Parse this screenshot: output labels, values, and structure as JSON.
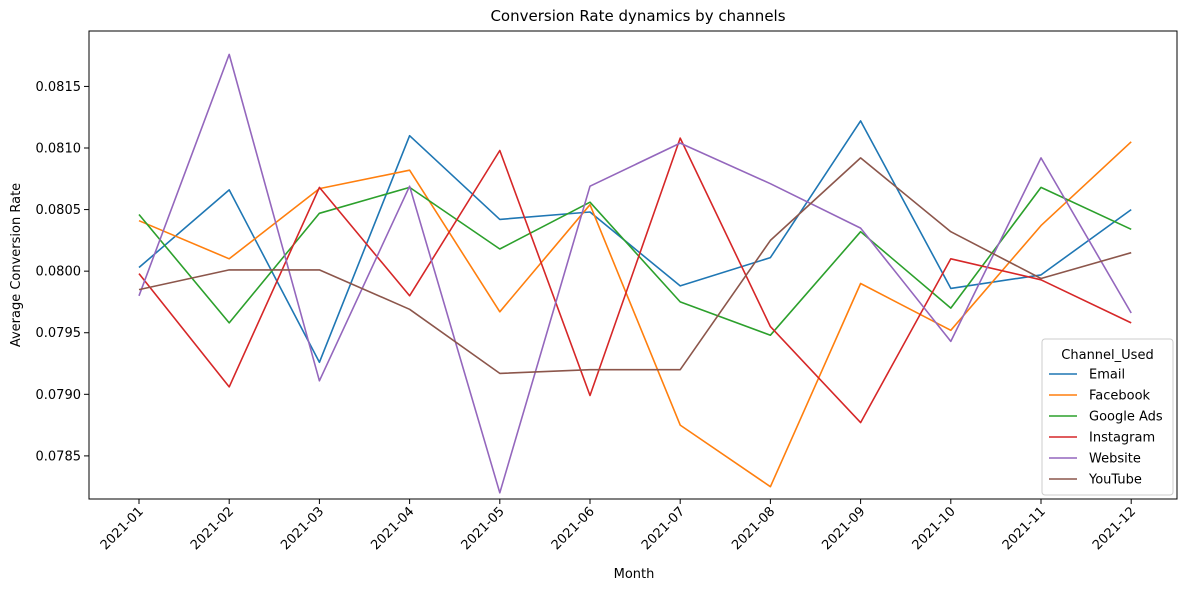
{
  "chart_data": {
    "type": "line",
    "title": "Conversion Rate dynamics by channels",
    "xlabel": "Month",
    "ylabel": "Average Conversion Rate",
    "categories": [
      "2021-01",
      "2021-02",
      "2021-03",
      "2021-04",
      "2021-05",
      "2021-06",
      "2021-07",
      "2021-08",
      "2021-09",
      "2021-10",
      "2021-11",
      "2021-12"
    ],
    "yticks": [
      "0.0785",
      "0.0790",
      "0.0795",
      "0.0800",
      "0.0805",
      "0.0810",
      "0.0815"
    ],
    "ylim": [
      0.07815,
      0.08195
    ],
    "grid": false,
    "legend": {
      "title": "Channel_Used",
      "position": "lower right"
    },
    "series": [
      {
        "name": "Email",
        "color": "#1f77b4",
        "values": [
          0.08003,
          0.08066,
          0.07926,
          0.0811,
          0.08042,
          0.08048,
          0.07988,
          0.08011,
          0.08122,
          0.07986,
          0.07997,
          0.0805
        ]
      },
      {
        "name": "Facebook",
        "color": "#ff7f0e",
        "values": [
          0.08041,
          0.0801,
          0.08067,
          0.08082,
          0.07967,
          0.08054,
          0.07875,
          0.07825,
          0.0799,
          0.07952,
          0.08037,
          0.08105
        ]
      },
      {
        "name": "Google Ads",
        "color": "#2ca02c",
        "values": [
          0.08046,
          0.07958,
          0.08047,
          0.08068,
          0.08018,
          0.08056,
          0.07975,
          0.07948,
          0.08032,
          0.0797,
          0.08068,
          0.08034
        ]
      },
      {
        "name": "Instagram",
        "color": "#d62728",
        "values": [
          0.07998,
          0.07906,
          0.08068,
          0.0798,
          0.08098,
          0.07899,
          0.08108,
          0.07955,
          0.07877,
          0.0801,
          0.07993,
          0.07958
        ]
      },
      {
        "name": "Website",
        "color": "#9467bd",
        "values": [
          0.0798,
          0.08176,
          0.07911,
          0.08069,
          0.0782,
          0.08069,
          0.08104,
          0.08071,
          0.08035,
          0.07943,
          0.08092,
          0.07966
        ]
      },
      {
        "name": "YouTube",
        "color": "#8c564b",
        "values": [
          0.07985,
          0.08001,
          0.08001,
          0.07969,
          0.07917,
          0.0792,
          0.0792,
          0.08025,
          0.08092,
          0.08032,
          0.07994,
          0.08015
        ]
      }
    ]
  }
}
